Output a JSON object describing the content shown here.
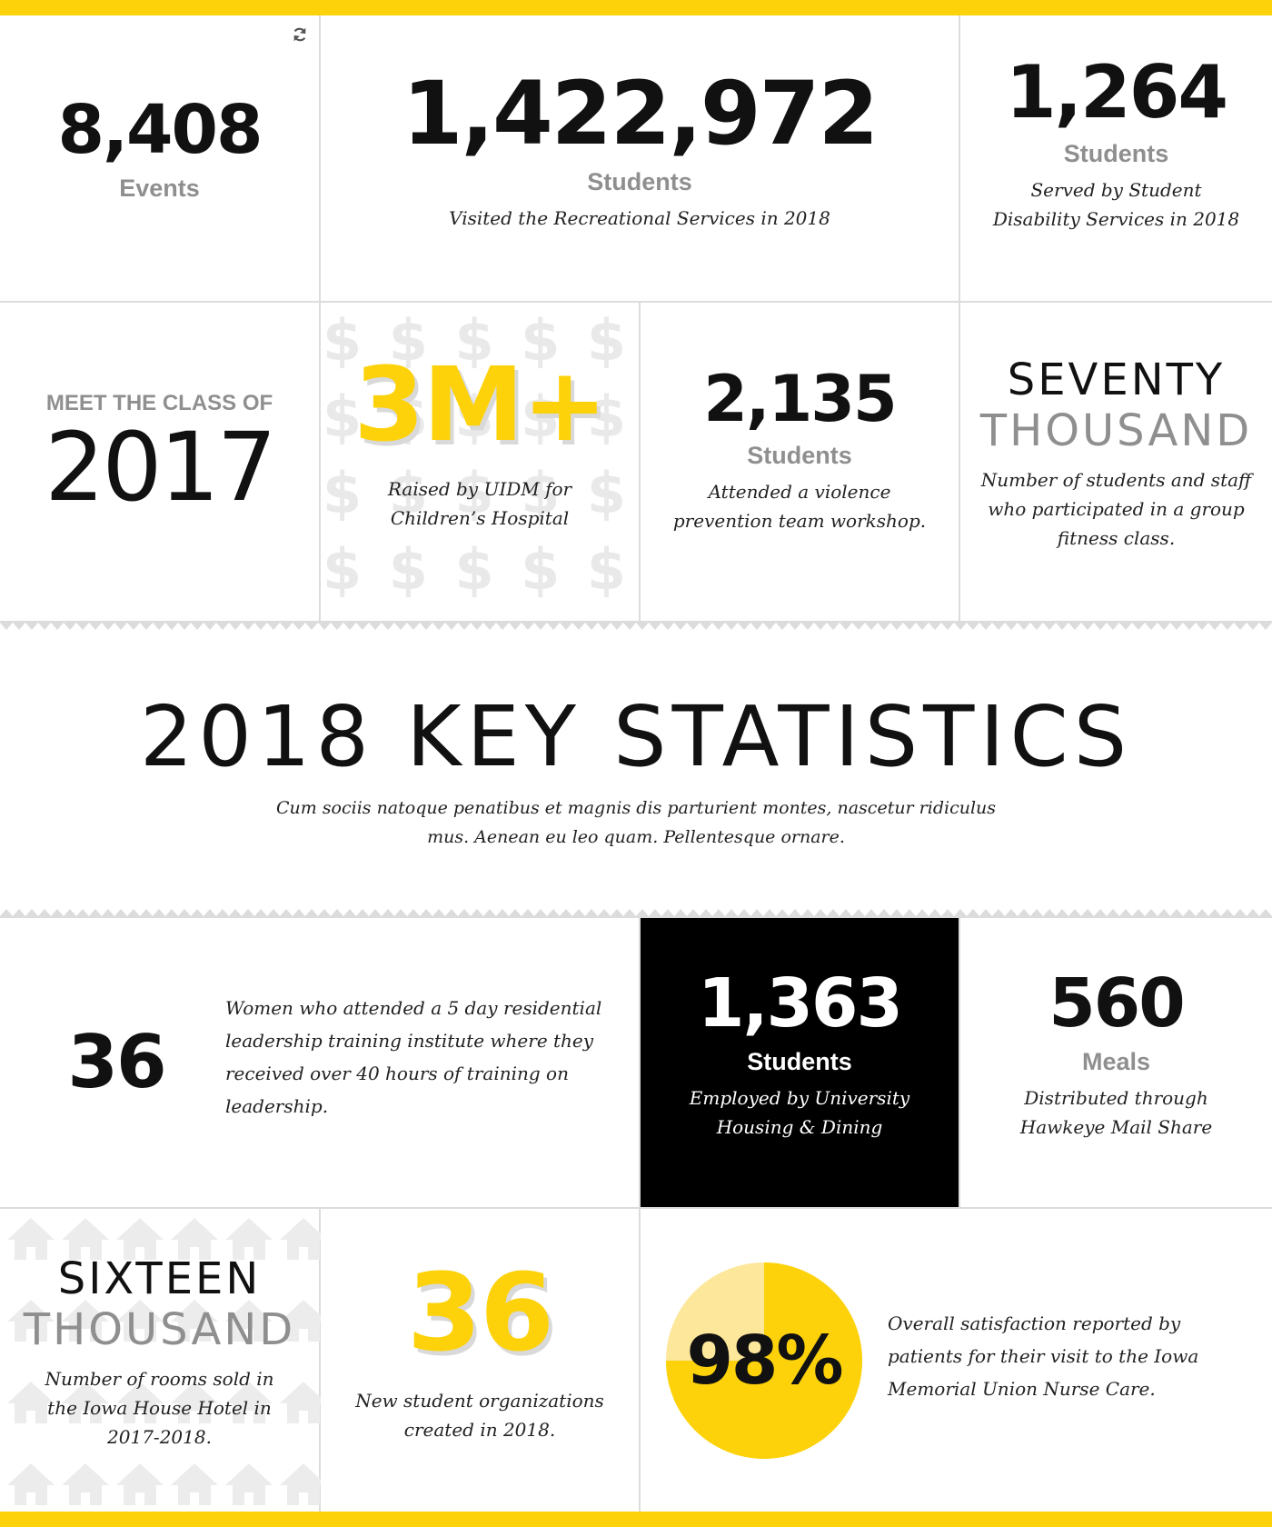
{
  "row1": {
    "events": {
      "value": "8,408",
      "unit": "Events"
    },
    "recreation": {
      "value": "1,422,972",
      "unit": "Students",
      "desc": "Visited the Recreational Services in 2018"
    },
    "disability": {
      "value": "1,264",
      "unit": "Students",
      "desc": "Served by Student Disability Services in 2018"
    }
  },
  "row2": {
    "class_of": {
      "label": "MEET THE CLASS OF",
      "year": "2017"
    },
    "uidm": {
      "value": "3M+",
      "desc": "Raised by UIDM for Children’s Hospital"
    },
    "violence": {
      "value": "2,135",
      "unit": "Students",
      "desc": "Attended a violence prevention team workshop."
    },
    "fitness": {
      "word1": "SEVENTY",
      "word2": "THOUSAND",
      "desc": "Number of students and staff who participated in a group fitness class."
    }
  },
  "key_stats": {
    "title": "2018 KEY STATISTICS",
    "subtitle": "Cum sociis natoque penatibus et magnis dis parturient montes, nascetur ridiculus mus. Aenean eu leo quam. Pellentesque ornare."
  },
  "row3": {
    "women": {
      "value": "36",
      "desc": "Women who attended a 5 day residential leadership training institute where they received over 40 hours of training on leadership."
    },
    "housing": {
      "value": "1,363",
      "unit": "Students",
      "desc": "Employed by University Housing & Dining"
    },
    "meals": {
      "value": "560",
      "unit": "Meals",
      "desc": "Distributed through Hawkeye Mail Share"
    }
  },
  "row4": {
    "rooms": {
      "word1": "SIXTEEN",
      "word2": "THOUSAND",
      "desc": "Number of rooms sold in the Iowa House Hotel in 2017-2018."
    },
    "orgs": {
      "value": "36",
      "desc": "New student organizations created in 2018."
    },
    "nurse": {
      "value": "98%",
      "percent": 98,
      "desc": "Overall satisfaction reported by patients for their visit to the Iowa Memorial Union Nurse Care."
    }
  },
  "colors": {
    "accent": "#fdd20a",
    "accent_light": "#fde79a",
    "divider": "#dcdcdc",
    "muted": "#8f8f8f"
  },
  "icons": {
    "refresh": "refresh-icon",
    "dollar": "dollar-sign-pattern",
    "house": "house-icon-pattern"
  }
}
